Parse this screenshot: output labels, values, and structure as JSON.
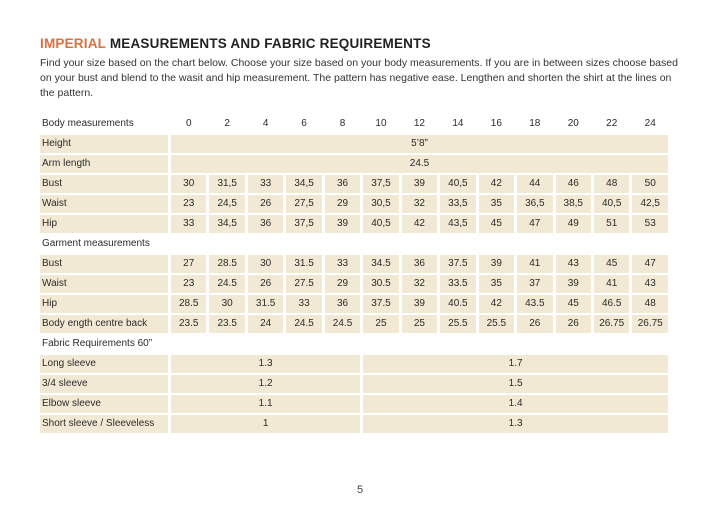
{
  "page": {
    "title_highlight": "IMPERIAL",
    "title_rest": "MEASUREMENTS AND FABRIC REQUIREMENTS",
    "intro": "Find your size based on the chart below. Choose your size based on your body measurements. If you are in between sizes choose based on your bust and blend to the wasit and hip measurement. The pattern has negative ease. Lengthen and shorten the shirt at the lines on the pattern.",
    "page_number": "5"
  },
  "colors": {
    "accent_orange": "#dd6f3e",
    "cell_beige": "#f2e9d5",
    "text": "#2b2b2b"
  },
  "table": {
    "sizes": [
      "0",
      "2",
      "4",
      "6",
      "8",
      "10",
      "12",
      "14",
      "16",
      "18",
      "20",
      "22",
      "24"
    ],
    "rows": [
      {
        "type": "sizes-header",
        "label": "Body measurements",
        "cells": [
          "0",
          "2",
          "4",
          "6",
          "8",
          "10",
          "12",
          "14",
          "16",
          "18",
          "20",
          "22",
          "24"
        ]
      },
      {
        "type": "merged",
        "label": "Height",
        "value": "5’8”"
      },
      {
        "type": "merged",
        "label": "Arm length",
        "value": "24.5"
      },
      {
        "type": "values",
        "label": "Bust",
        "cells": [
          "30",
          "31,5",
          "33",
          "34,5",
          "36",
          "37,5",
          "39",
          "40,5",
          "42",
          "44",
          "46",
          "48",
          "50"
        ]
      },
      {
        "type": "values",
        "label": "Waist",
        "cells": [
          "23",
          "24,5",
          "26",
          "27,5",
          "29",
          "30,5",
          "32",
          "33,5",
          "35",
          "36,5",
          "38,5",
          "40,5",
          "42,5"
        ]
      },
      {
        "type": "values",
        "label": "Hip",
        "cells": [
          "33",
          "34,5",
          "36",
          "37,5",
          "39",
          "40,5",
          "42",
          "43,5",
          "45",
          "47",
          "49",
          "51",
          "53"
        ]
      },
      {
        "type": "section",
        "label": "Garment measurements"
      },
      {
        "type": "values",
        "label": "Bust",
        "cells": [
          "27",
          "28.5",
          "30",
          "31.5",
          "33",
          "34.5",
          "36",
          "37.5",
          "39",
          "41",
          "43",
          "45",
          "47"
        ]
      },
      {
        "type": "values",
        "label": "Waist",
        "cells": [
          "23",
          "24.5",
          "26",
          "27.5",
          "29",
          "30.5",
          "32",
          "33.5",
          "35",
          "37",
          "39",
          "41",
          "43"
        ]
      },
      {
        "type": "values",
        "label": "Hip",
        "cells": [
          "28.5",
          "30",
          "31.5",
          "33",
          "36",
          "37.5",
          "39",
          "40.5",
          "42",
          "43.5",
          "45",
          "46.5",
          "48"
        ]
      },
      {
        "type": "values",
        "label": "Body ength centre back",
        "cells": [
          "23.5",
          "23.5",
          "24",
          "24.5",
          "24.5",
          "25",
          "25",
          "25.5",
          "25.5",
          "26",
          "26",
          "26.75",
          "26.75"
        ]
      },
      {
        "type": "section",
        "label": "Fabric Requirements 60”"
      },
      {
        "type": "split",
        "label": "Long sleeve",
        "left": "1.3",
        "right": "1.7"
      },
      {
        "type": "split",
        "label": "3/4 sleeve",
        "left": "1.2",
        "right": "1.5"
      },
      {
        "type": "split",
        "label": "Elbow sleeve",
        "left": "1.1",
        "right": "1.4"
      },
      {
        "type": "split",
        "label": "Short sleeve / Sleeveless",
        "left": "1",
        "right": "1.3"
      }
    ]
  }
}
